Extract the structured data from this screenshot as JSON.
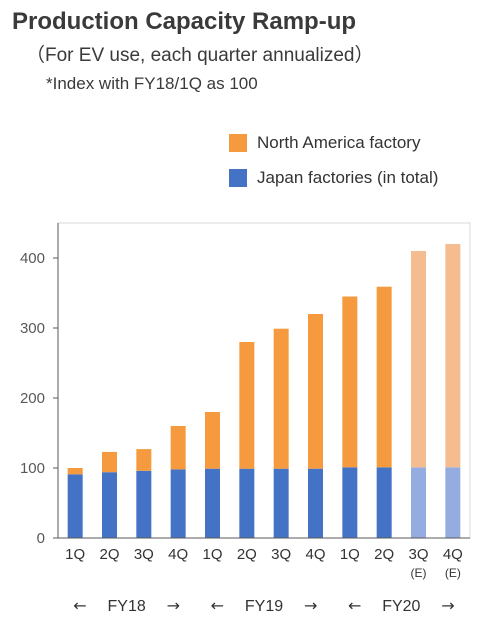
{
  "header": {
    "title": "Production Capacity Ramp-up",
    "subtitle": "（For EV use, each quarter annualized）",
    "note": "*Index with FY18/1Q as 100"
  },
  "colors": {
    "north_america": "#F59A3E",
    "north_america_estimate": "#F5BD8F",
    "japan": "#4472C4",
    "japan_estimate": "#94ACDF",
    "axis": "#595959",
    "frame": "#d9d9d9"
  },
  "chart_data": {
    "type": "bar",
    "stacked": true,
    "categories": [
      "1Q",
      "2Q",
      "3Q",
      "4Q",
      "1Q",
      "2Q",
      "3Q",
      "4Q",
      "1Q",
      "2Q",
      "3Q",
      "4Q"
    ],
    "estimate_label": "(E)",
    "estimate_flags": [
      false,
      false,
      false,
      false,
      false,
      false,
      false,
      false,
      false,
      false,
      true,
      true
    ],
    "series": [
      {
        "name": "Japan factories (in total)",
        "values": [
          91,
          94,
          96,
          98,
          99,
          99,
          99,
          99,
          101,
          101,
          101,
          101
        ]
      },
      {
        "name": "North America factory",
        "values": [
          9,
          29,
          31,
          62,
          81,
          181,
          200,
          221,
          244,
          258,
          309,
          319
        ]
      }
    ],
    "legend": [
      "North America factory",
      "Japan factories (in total)"
    ],
    "legend_position": "top-right",
    "ylim": [
      0,
      450
    ],
    "yticks": [
      0,
      100,
      200,
      300,
      400
    ],
    "grid": false,
    "fiscal_years": [
      {
        "label": "FY18",
        "left_arrow": "←",
        "right_arrow": "→"
      },
      {
        "label": "FY19",
        "left_arrow": "←",
        "right_arrow": "→"
      },
      {
        "label": "FY20",
        "left_arrow": "←",
        "right_arrow": "→"
      }
    ]
  }
}
